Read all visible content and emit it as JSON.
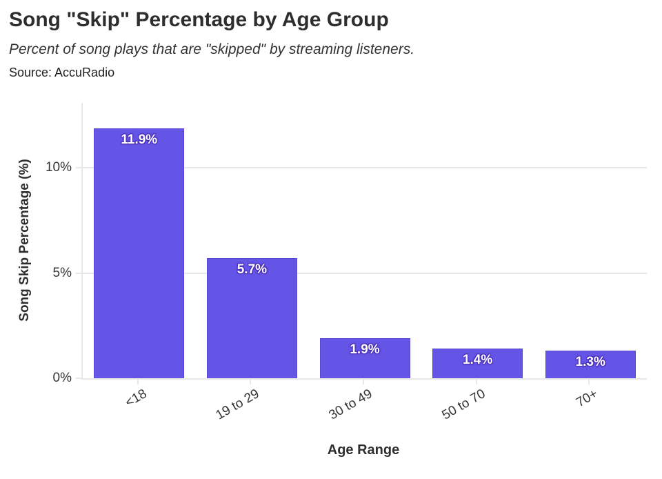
{
  "chart_data": {
    "type": "bar",
    "title": "Song \"Skip\" Percentage by Age Group",
    "subtitle": "Percent of song plays that are \"skipped\" by streaming listeners.",
    "source": "Source: AccuRadio",
    "categories": [
      "<18",
      "19 to 29",
      "30 to 49",
      "50 to 70",
      "70+"
    ],
    "values": [
      11.9,
      5.7,
      1.9,
      1.4,
      1.3
    ],
    "bar_labels": [
      "11.9%",
      "5.7%",
      "1.9%",
      "1.4%",
      "1.3%"
    ],
    "xlabel": "Age Range",
    "ylabel": "Song Skip Percentage (%)",
    "y_ticks": [
      {
        "value": 0,
        "label": "0%"
      },
      {
        "value": 5,
        "label": "5%"
      },
      {
        "value": 10,
        "label": "10%"
      }
    ],
    "ylim": [
      0,
      13.1
    ],
    "grid": true,
    "legend": "none",
    "x_tick_angle": -30,
    "colors": {
      "bar": "#6455e6",
      "bar_border": "#5747cf",
      "bar_label_text": "#ffffff",
      "bar_label_halo": "#4a2eb8",
      "grid": "#e8e8e8",
      "axis_text": "#333333",
      "title_text": "#2e2e2e"
    }
  }
}
